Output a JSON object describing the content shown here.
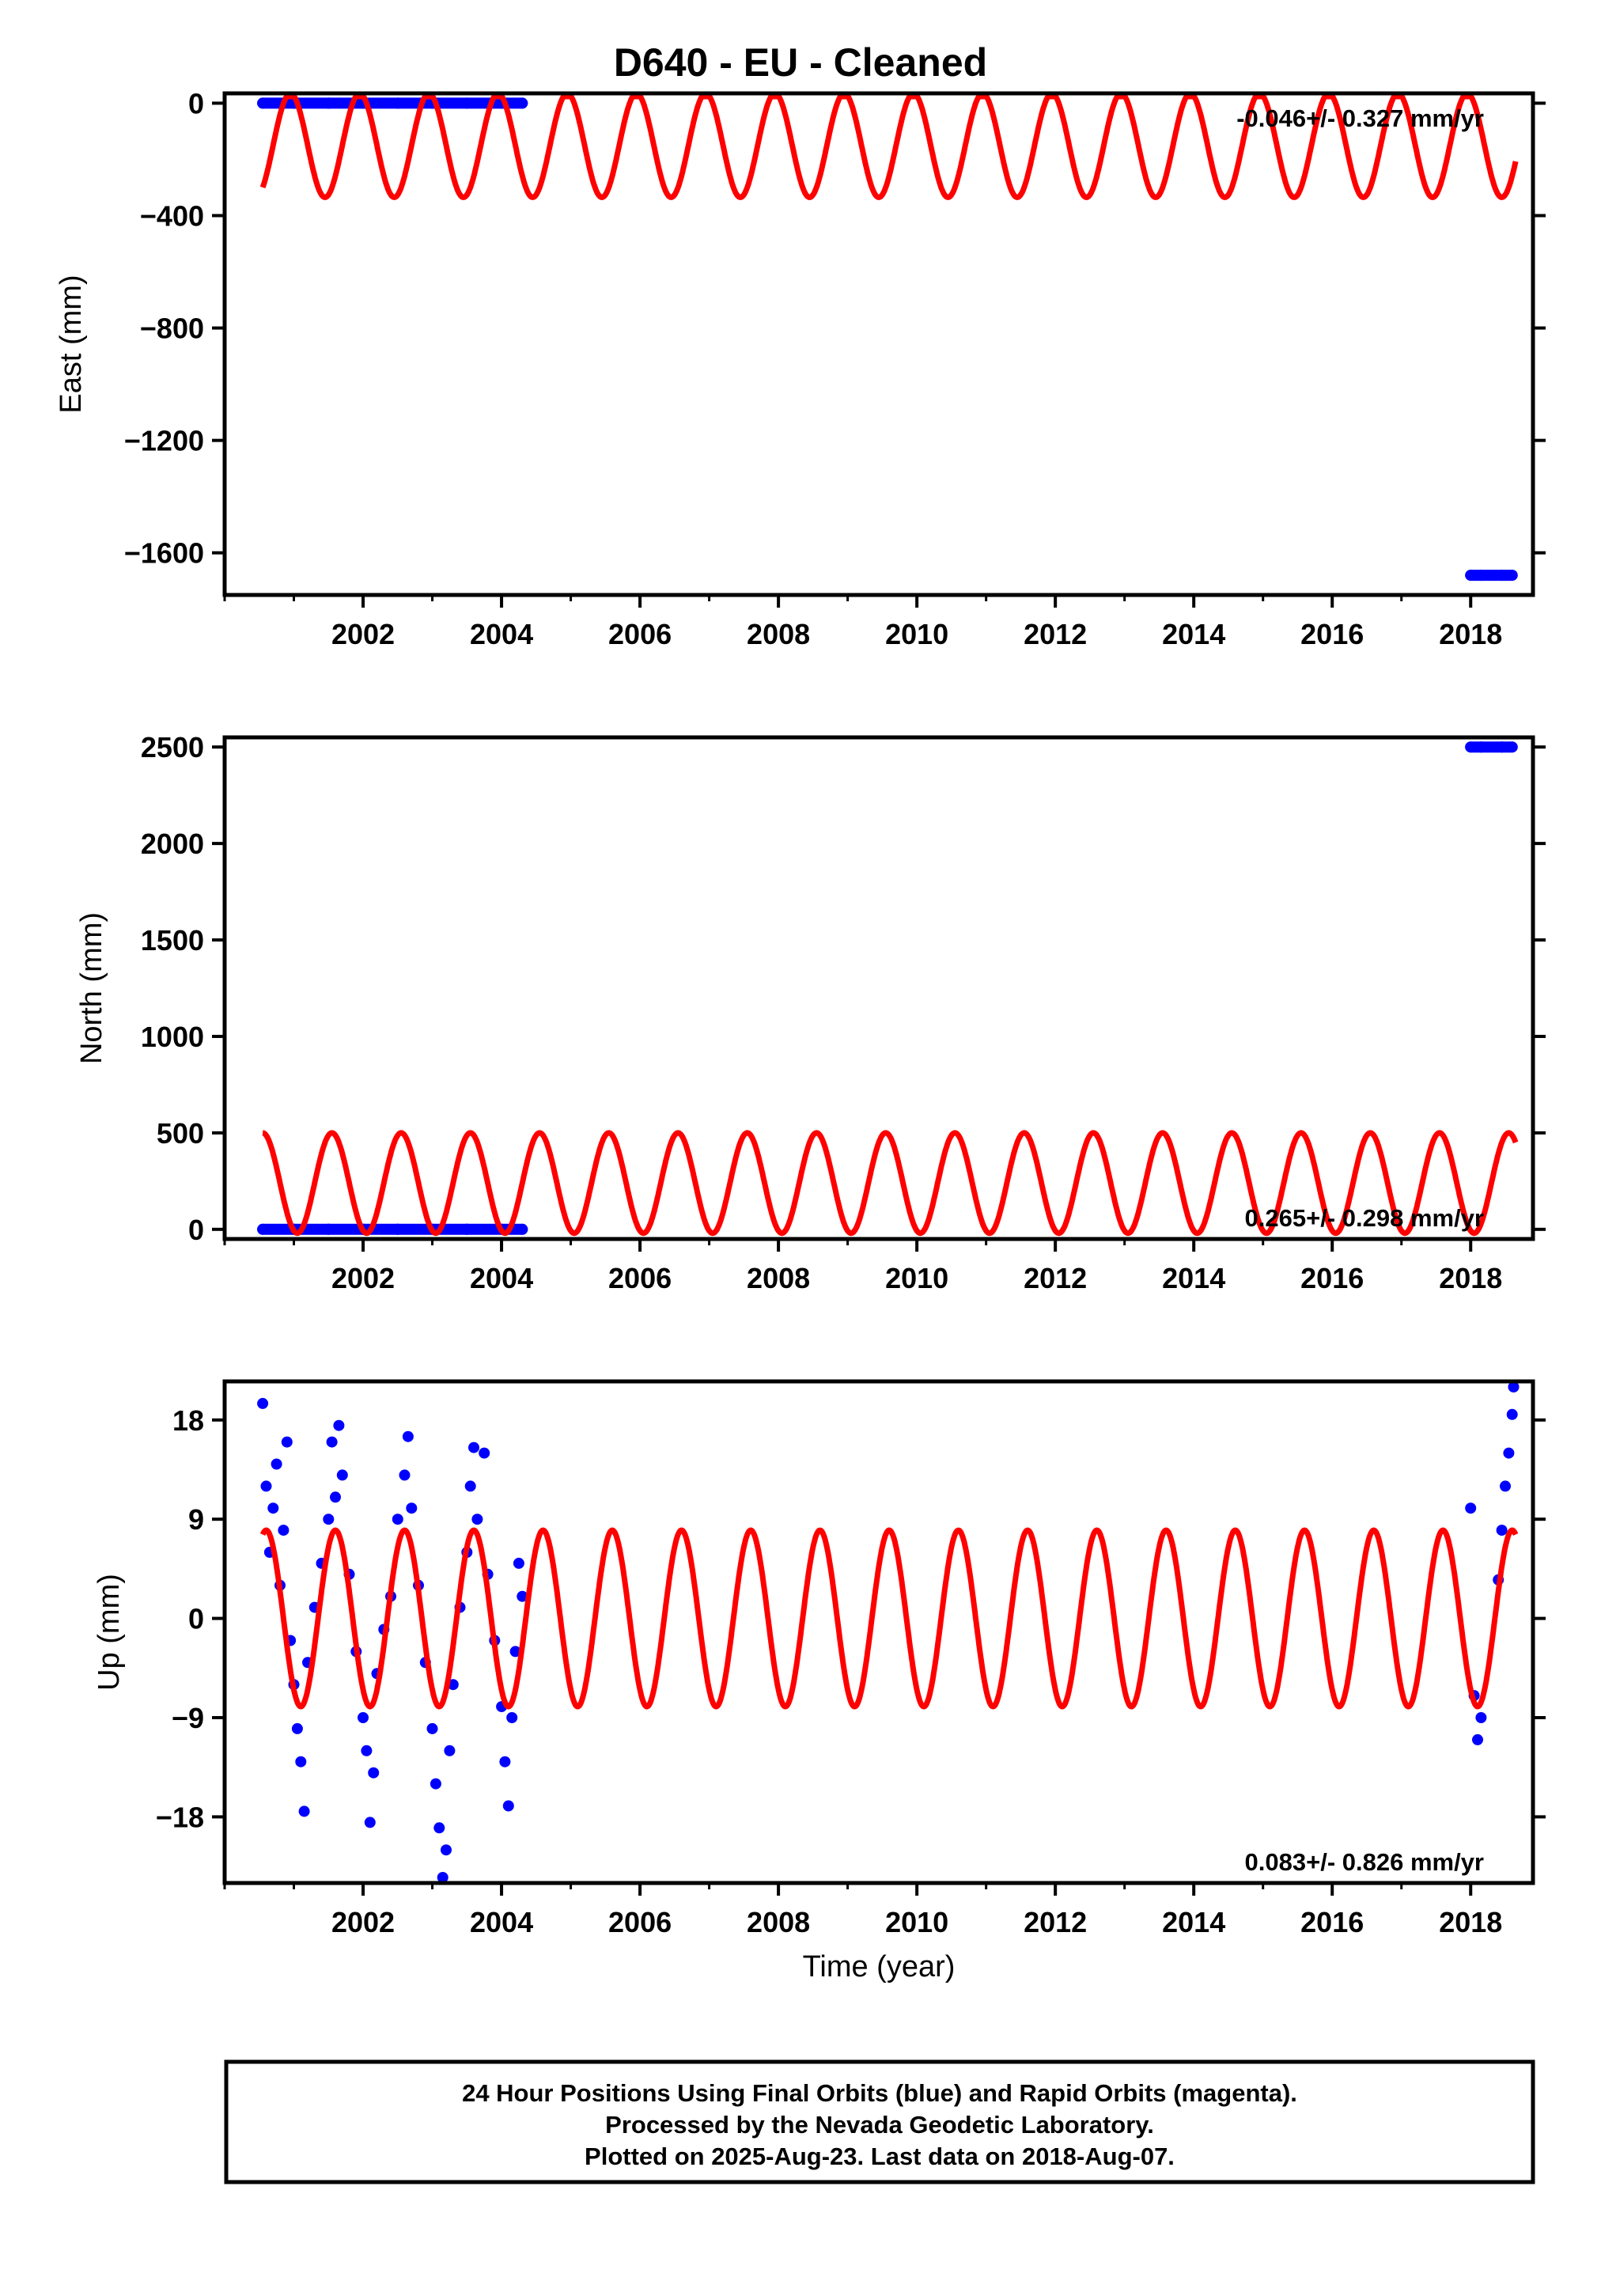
{
  "colors": {
    "final_orbits": "#0000ff",
    "model_fit": "#ff0000",
    "frame": "#000000"
  },
  "chart_data": [
    {
      "type": "scatter",
      "title": "D640  - EU - Cleaned",
      "xlabel": "",
      "ylabel": "East (mm)",
      "xlim": [
        2000.0,
        2018.9
      ],
      "ylim": [
        -1750,
        35
      ],
      "x_ticks": [
        2002,
        2004,
        2006,
        2008,
        2010,
        2012,
        2014,
        2016,
        2018
      ],
      "y_ticks": [
        0,
        -400,
        -800,
        -1200,
        -1600
      ],
      "grid": false,
      "rate_label": "-0.046+/- 0.327 mm/yr",
      "series": [
        {
          "points": [
            [
              2000.55,
              0
            ],
            [
              2001.0,
              0
            ],
            [
              2001.5,
              0
            ],
            [
              2002.0,
              0
            ],
            [
              2002.5,
              0
            ],
            [
              2003.0,
              0
            ],
            [
              2003.5,
              0
            ],
            [
              2004.0,
              0
            ],
            [
              2004.3,
              0
            ],
            [
              2018.0,
              -1680
            ],
            [
              2018.15,
              -1680
            ],
            [
              2018.45,
              -1680
            ],
            [
              2018.6,
              -1680
            ]
          ]
        },
        {
          "model": {
            "start": 2000.55,
            "end": 2018.65,
            "offset": -150,
            "amplitude": 185,
            "period": 1.0,
            "peak_year": 2000.95
          }
        }
      ]
    },
    {
      "type": "scatter",
      "title": "",
      "xlabel": "",
      "ylabel": "North (mm)",
      "xlim": [
        2000.0,
        2018.9
      ],
      "ylim": [
        -50,
        2550
      ],
      "x_ticks": [
        2002,
        2004,
        2006,
        2008,
        2010,
        2012,
        2014,
        2016,
        2018
      ],
      "y_ticks": [
        0,
        500,
        1000,
        1500,
        2000,
        2500
      ],
      "grid": false,
      "rate_label": "0.265+/- 0.298 mm/yr",
      "series": [
        {
          "points": [
            [
              2000.55,
              0
            ],
            [
              2001.0,
              0
            ],
            [
              2001.5,
              0
            ],
            [
              2002.0,
              0
            ],
            [
              2002.5,
              0
            ],
            [
              2003.0,
              0
            ],
            [
              2003.5,
              0
            ],
            [
              2004.0,
              0
            ],
            [
              2004.3,
              0
            ],
            [
              2018.0,
              2500
            ],
            [
              2018.15,
              2500
            ],
            [
              2018.45,
              2500
            ],
            [
              2018.6,
              2500
            ]
          ]
        },
        {
          "model": {
            "start": 2000.55,
            "end": 2018.65,
            "offset": 240,
            "amplitude": 260,
            "period": 1.0,
            "peak_year": 2000.55
          }
        }
      ]
    },
    {
      "type": "scatter",
      "title": "",
      "xlabel": "Time (year)",
      "ylabel": "Up (mm)",
      "xlim": [
        2000.0,
        2018.9
      ],
      "ylim": [
        -24,
        21.5
      ],
      "x_ticks": [
        2002,
        2004,
        2006,
        2008,
        2010,
        2012,
        2014,
        2016,
        2018
      ],
      "y_ticks": [
        18,
        9,
        0,
        -9,
        -18
      ],
      "grid": false,
      "rate_label": "0.083+/- 0.826 mm/yr",
      "series": [
        {
          "points": [
            [
              2000.55,
              19.5
            ],
            [
              2000.6,
              12
            ],
            [
              2000.65,
              6
            ],
            [
              2000.7,
              10
            ],
            [
              2000.75,
              14
            ],
            [
              2000.8,
              3
            ],
            [
              2000.85,
              8
            ],
            [
              2000.9,
              16
            ],
            [
              2000.95,
              -2
            ],
            [
              2001.0,
              -6
            ],
            [
              2001.05,
              -10
            ],
            [
              2001.1,
              -13
            ],
            [
              2001.15,
              -17.5
            ],
            [
              2001.2,
              -4
            ],
            [
              2001.3,
              1
            ],
            [
              2001.4,
              5
            ],
            [
              2001.5,
              9
            ],
            [
              2001.55,
              16
            ],
            [
              2001.6,
              11
            ],
            [
              2001.65,
              17.5
            ],
            [
              2001.7,
              13
            ],
            [
              2001.8,
              4
            ],
            [
              2001.9,
              -3
            ],
            [
              2002.0,
              -9
            ],
            [
              2002.05,
              -12
            ],
            [
              2002.1,
              -18.5
            ],
            [
              2002.15,
              -14
            ],
            [
              2002.2,
              -5
            ],
            [
              2002.3,
              -1
            ],
            [
              2002.4,
              2
            ],
            [
              2002.5,
              9
            ],
            [
              2002.6,
              13
            ],
            [
              2002.65,
              16.5
            ],
            [
              2002.7,
              10
            ],
            [
              2002.8,
              3
            ],
            [
              2002.9,
              -4
            ],
            [
              2003.0,
              -10
            ],
            [
              2003.05,
              -15
            ],
            [
              2003.1,
              -19
            ],
            [
              2003.15,
              -23.5
            ],
            [
              2003.2,
              -21
            ],
            [
              2003.25,
              -12
            ],
            [
              2003.3,
              -6
            ],
            [
              2003.4,
              1
            ],
            [
              2003.5,
              6
            ],
            [
              2003.55,
              12
            ],
            [
              2003.6,
              15.5
            ],
            [
              2003.65,
              9
            ],
            [
              2003.75,
              15
            ],
            [
              2003.8,
              4
            ],
            [
              2003.9,
              -2
            ],
            [
              2004.0,
              -8
            ],
            [
              2004.05,
              -13
            ],
            [
              2004.1,
              -17
            ],
            [
              2004.15,
              -9
            ],
            [
              2004.2,
              -3
            ],
            [
              2004.25,
              5
            ],
            [
              2004.3,
              2
            ],
            [
              2018.0,
              10
            ],
            [
              2018.05,
              -7
            ],
            [
              2018.1,
              -11
            ],
            [
              2018.15,
              -9
            ],
            [
              2018.4,
              3.5
            ],
            [
              2018.45,
              8
            ],
            [
              2018.5,
              12
            ],
            [
              2018.55,
              15
            ],
            [
              2018.6,
              18.5
            ],
            [
              2018.62,
              21
            ]
          ]
        },
        {
          "model": {
            "start": 2000.55,
            "end": 2018.65,
            "offset": 0,
            "amplitude": 8,
            "period": 1.0,
            "peak_year": 2000.6
          }
        }
      ]
    }
  ],
  "footer": {
    "line1": "24 Hour Positions Using Final Orbits (blue) and Rapid Orbits (magenta).",
    "line2": "Processed by the Nevada Geodetic Laboratory.",
    "line3": "Plotted on 2025-Aug-23. Last data on 2018-Aug-07."
  }
}
